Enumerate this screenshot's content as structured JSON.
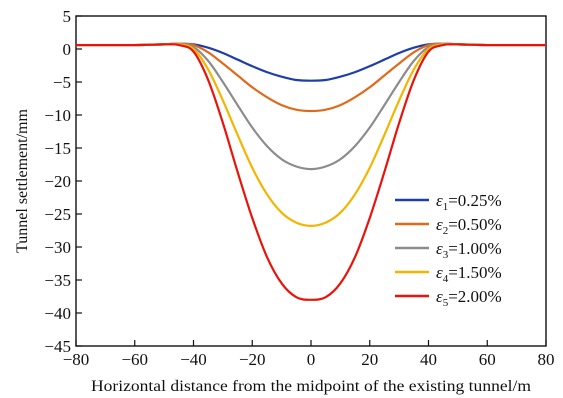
{
  "chart_data": {
    "type": "line",
    "title": "",
    "xlabel": "Horizontal distance from the midpoint of the existing tunnel/m",
    "ylabel": "Tunnel settlement/mm",
    "xlim": [
      -80,
      80
    ],
    "ylim": [
      -45,
      5
    ],
    "xticks": [
      "−80",
      "−60",
      "−40",
      "−20",
      "0",
      "20",
      "40",
      "60",
      "80"
    ],
    "yticks": [
      "5",
      "0",
      "−5",
      "−10",
      "−15",
      "−20",
      "−25",
      "−30",
      "−35",
      "−40",
      "−45"
    ],
    "grid": false,
    "legend_position": "bottom-right",
    "x": [
      -80,
      -60,
      -50,
      -45,
      -40,
      -35,
      -30,
      -25,
      -20,
      -15,
      -10,
      -5,
      0,
      5,
      10,
      15,
      20,
      25,
      30,
      35,
      40,
      45,
      50,
      60,
      80
    ],
    "series": [
      {
        "name": "ε1=0.25%",
        "symbol": "ε",
        "sub": "1",
        "val": "=0.25%",
        "color": "#1f3fa6",
        "values": [
          0.6,
          0.6,
          0.7,
          0.8,
          0.7,
          0.2,
          -0.6,
          -1.6,
          -2.6,
          -3.5,
          -4.2,
          -4.7,
          -4.8,
          -4.7,
          -4.2,
          -3.5,
          -2.6,
          -1.6,
          -0.6,
          0.2,
          0.7,
          0.8,
          0.7,
          0.6,
          0.6
        ]
      },
      {
        "name": "ε2=0.50%",
        "symbol": "ε",
        "sub": "2",
        "val": "=0.50%",
        "color": "#e06a1c",
        "values": [
          0.6,
          0.6,
          0.7,
          0.8,
          0.6,
          -0.5,
          -2.2,
          -4.0,
          -5.8,
          -7.3,
          -8.5,
          -9.2,
          -9.4,
          -9.2,
          -8.5,
          -7.3,
          -5.8,
          -4.0,
          -2.2,
          -0.5,
          0.6,
          0.8,
          0.7,
          0.6,
          0.6
        ]
      },
      {
        "name": "ε3=1.00%",
        "symbol": "ε",
        "sub": "3",
        "val": "=1.00%",
        "color": "#8c8c8c",
        "values": [
          0.6,
          0.6,
          0.7,
          0.8,
          0.3,
          -1.8,
          -5.0,
          -8.5,
          -11.9,
          -14.7,
          -16.7,
          -17.8,
          -18.2,
          -17.8,
          -16.7,
          -14.7,
          -11.9,
          -8.5,
          -5.0,
          -1.8,
          0.3,
          0.8,
          0.7,
          0.6,
          0.6
        ]
      },
      {
        "name": "ε4=1.50%",
        "symbol": "ε",
        "sub": "4",
        "val": "=1.50%",
        "color": "#f5b400",
        "values": [
          0.6,
          0.6,
          0.7,
          0.7,
          0.0,
          -3.1,
          -7.8,
          -13.0,
          -18.0,
          -22.0,
          -24.8,
          -26.3,
          -26.8,
          -26.3,
          -24.8,
          -22.0,
          -18.0,
          -13.0,
          -7.8,
          -3.1,
          0.0,
          0.7,
          0.7,
          0.6,
          0.6
        ]
      },
      {
        "name": "ε5=2.00%",
        "symbol": "ε",
        "sub": "5",
        "val": "=2.00%",
        "color": "#e8140c",
        "values": [
          0.6,
          0.6,
          0.7,
          0.6,
          -0.4,
          -4.7,
          -11.2,
          -18.6,
          -25.6,
          -31.5,
          -35.5,
          -37.6,
          -38.0,
          -37.6,
          -35.5,
          -31.5,
          -25.6,
          -18.6,
          -11.2,
          -4.7,
          -0.4,
          0.6,
          0.7,
          0.6,
          0.6
        ]
      }
    ]
  }
}
